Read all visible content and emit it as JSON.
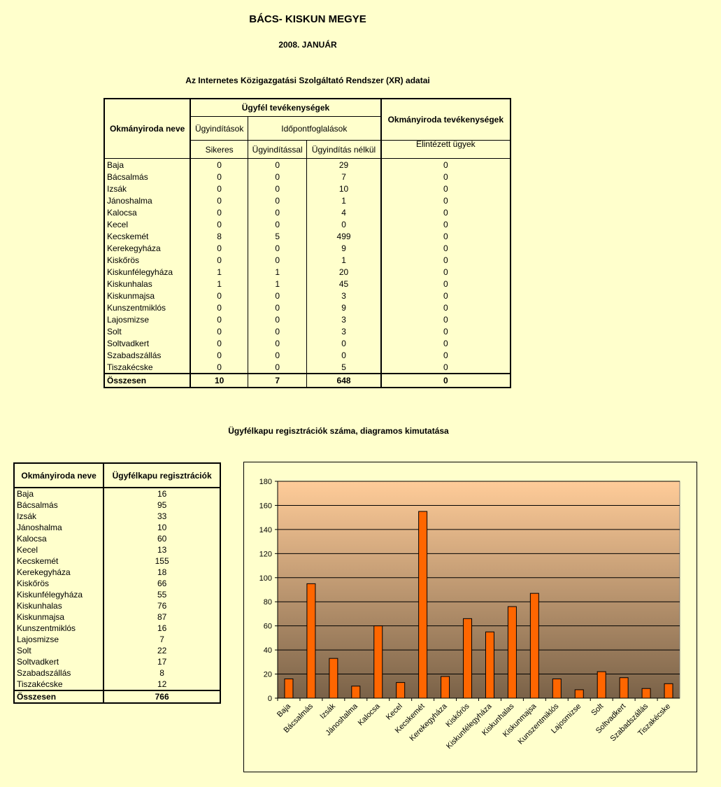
{
  "header": {
    "county": "BÁCS-  KISKUN MEGYE",
    "period": "2008. JANUÁR",
    "table1_title": "Az Internetes Közigazgatási Szolgáltató Rendszer (XR) adatai",
    "table2_title": "Ügyfélkapu regisztrációk száma, diagramos kimutatása"
  },
  "table1": {
    "col_office": "Okmányiroda neve",
    "group_client": "Ügyfél tevékenységek",
    "group_office": "Okmányiroda tevékenységek",
    "sub_start": "Ügyindítások",
    "sub_booking": "Időpontfoglalások",
    "col_success": "Sikeres",
    "col_with": "Ügyindítással",
    "col_without": "Ügyindítás nélkül",
    "col_done": "Elintézett ügyek",
    "rows": [
      {
        "name": "Baja",
        "a": "0",
        "b": "0",
        "c": "29",
        "d": "0"
      },
      {
        "name": "Bácsalmás",
        "a": "0",
        "b": "0",
        "c": "7",
        "d": "0"
      },
      {
        "name": "Izsák",
        "a": "0",
        "b": "0",
        "c": "10",
        "d": "0"
      },
      {
        "name": "Jánoshalma",
        "a": "0",
        "b": "0",
        "c": "1",
        "d": "0"
      },
      {
        "name": "Kalocsa",
        "a": "0",
        "b": "0",
        "c": "4",
        "d": "0"
      },
      {
        "name": "Kecel",
        "a": "0",
        "b": "0",
        "c": "0",
        "d": "0"
      },
      {
        "name": "Kecskemét",
        "a": "8",
        "b": "5",
        "c": "499",
        "d": "0"
      },
      {
        "name": "Kerekegyháza",
        "a": "0",
        "b": "0",
        "c": "9",
        "d": "0"
      },
      {
        "name": "Kiskőrös",
        "a": "0",
        "b": "0",
        "c": "1",
        "d": "0"
      },
      {
        "name": "Kiskunfélegyháza",
        "a": "1",
        "b": "1",
        "c": "20",
        "d": "0"
      },
      {
        "name": "Kiskunhalas",
        "a": "1",
        "b": "1",
        "c": "45",
        "d": "0"
      },
      {
        "name": "Kiskunmajsa",
        "a": "0",
        "b": "0",
        "c": "3",
        "d": "0"
      },
      {
        "name": "Kunszentmiklós",
        "a": "0",
        "b": "0",
        "c": "9",
        "d": "0"
      },
      {
        "name": "Lajosmizse",
        "a": "0",
        "b": "0",
        "c": "3",
        "d": "0"
      },
      {
        "name": "Solt",
        "a": "0",
        "b": "0",
        "c": "3",
        "d": "0"
      },
      {
        "name": "Soltvadkert",
        "a": "0",
        "b": "0",
        "c": "0",
        "d": "0"
      },
      {
        "name": "Szabadszállás",
        "a": "0",
        "b": "0",
        "c": "0",
        "d": "0"
      },
      {
        "name": "Tiszakécske",
        "a": "0",
        "b": "0",
        "c": "5",
        "d": "0"
      }
    ],
    "total": {
      "name": "Összesen",
      "a": "10",
      "b": "7",
      "c": "648",
      "d": "0"
    }
  },
  "table2": {
    "col_office": "Okmányiroda neve",
    "col_reg": "Ügyfélkapu regisztrációk",
    "rows": [
      {
        "name": "Baja",
        "v": "16"
      },
      {
        "name": "Bácsalmás",
        "v": "95"
      },
      {
        "name": "Izsák",
        "v": "33"
      },
      {
        "name": "Jánoshalma",
        "v": "10"
      },
      {
        "name": "Kalocsa",
        "v": "60"
      },
      {
        "name": "Kecel",
        "v": "13"
      },
      {
        "name": "Kecskemét",
        "v": "155"
      },
      {
        "name": "Kerekegyháza",
        "v": "18"
      },
      {
        "name": "Kiskőrös",
        "v": "66"
      },
      {
        "name": "Kiskunfélegyháza",
        "v": "55"
      },
      {
        "name": "Kiskunhalas",
        "v": "76"
      },
      {
        "name": "Kiskunmajsa",
        "v": "87"
      },
      {
        "name": "Kunszentmiklós",
        "v": "16"
      },
      {
        "name": "Lajosmizse",
        "v": "7"
      },
      {
        "name": "Solt",
        "v": "22"
      },
      {
        "name": "Soltvadkert",
        "v": "17"
      },
      {
        "name": "Szabadszállás",
        "v": "8"
      },
      {
        "name": "Tiszakécske",
        "v": "12"
      }
    ],
    "total": {
      "name": "Összesen",
      "v": "766"
    }
  },
  "chart_data": {
    "type": "bar",
    "categories": [
      "Baja",
      "Bácsalmás",
      "Izsák",
      "Jánoshalma",
      "Kalocsa",
      "Kecel",
      "Kecskemét",
      "Kerekegyháza",
      "Kiskőrös",
      "Kiskunfélegyháza",
      "Kiskunhalas",
      "Kiskunmajsa",
      "Kunszentmiklós",
      "Lajosmizse",
      "Solt",
      "Soltvadkert",
      "Szabadszállás",
      "Tiszakécske"
    ],
    "values": [
      16,
      95,
      33,
      10,
      60,
      13,
      155,
      18,
      66,
      55,
      76,
      87,
      16,
      7,
      22,
      17,
      8,
      12
    ],
    "yticks": [
      "0",
      "20",
      "40",
      "60",
      "80",
      "100",
      "120",
      "140",
      "160",
      "180"
    ],
    "ylim": [
      0,
      180
    ],
    "grid": true,
    "legend": "none",
    "colors": {
      "bar": "#ff6600",
      "bar_edge": "#000000",
      "plot_top": "#ffcc99",
      "plot_bottom": "#7a6248"
    }
  }
}
